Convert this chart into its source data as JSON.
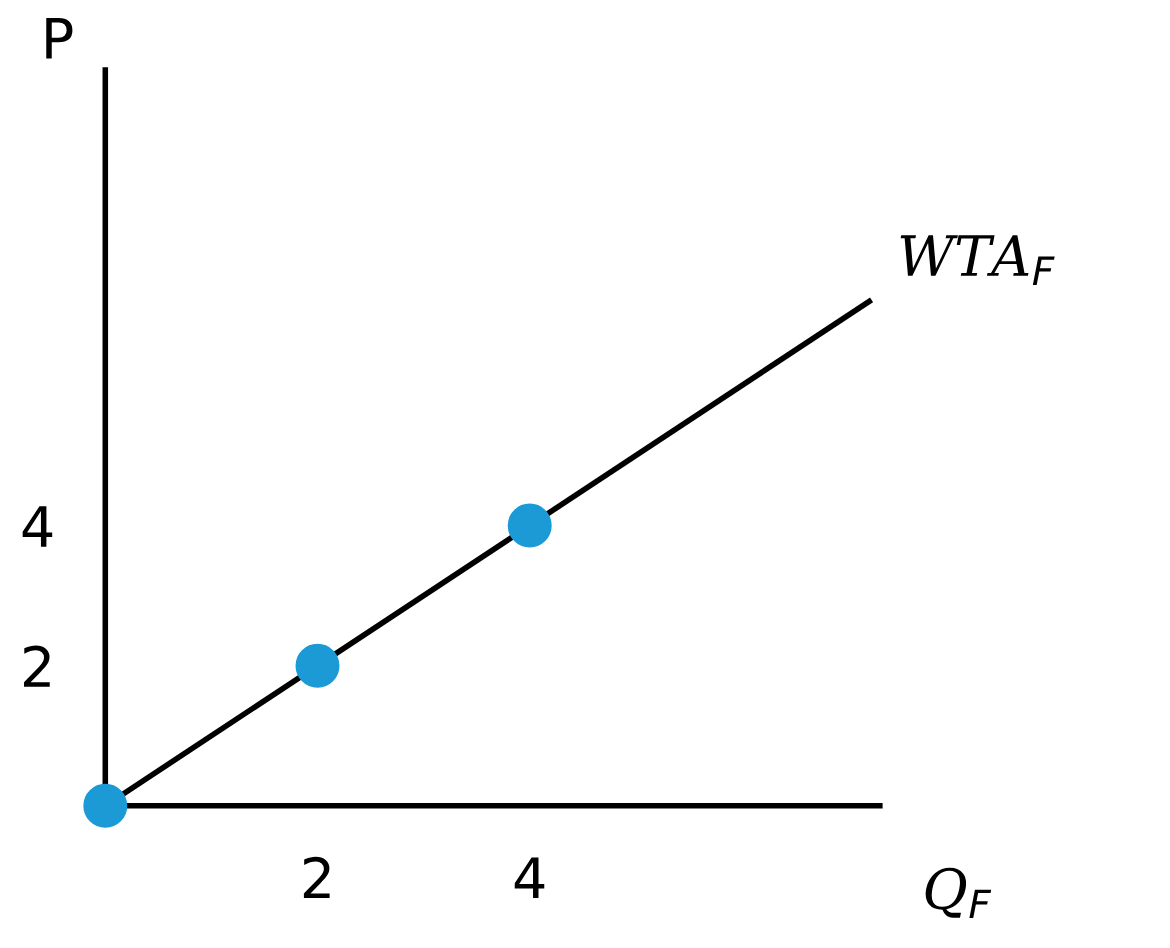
{
  "chart_data": {
    "type": "scatter",
    "xlabel": "Q$_{F}$",
    "ylabel": "P",
    "series": [
      {
        "type": "line",
        "marker": "none",
        "color": "#000000",
        "x": [
          0,
          7.2
        ],
        "values": [
          0,
          7.2
        ]
      },
      {
        "marker": "circle",
        "color": "#1b9ad6",
        "x": [
          0,
          2,
          4
        ],
        "values": [
          0,
          2,
          4
        ]
      }
    ],
    "annotations": [
      {
        "text": "WTA$_{F}$",
        "x": 7.2,
        "y": 7.2
      }
    ],
    "xlim": [
      0,
      7.3
    ],
    "ylim": [
      0,
      10.5
    ],
    "xticks": [
      2,
      4
    ],
    "yticks": [
      2,
      4
    ],
    "grid": false
  }
}
